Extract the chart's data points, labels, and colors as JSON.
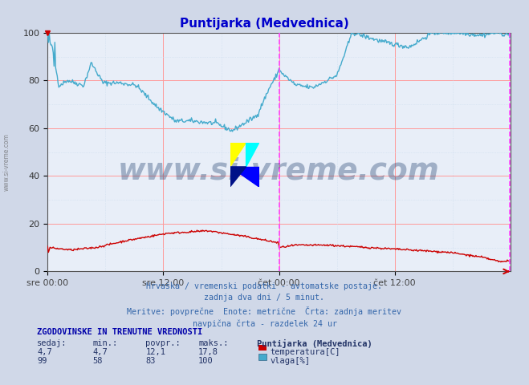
{
  "title": "Puntijarka (Medvednica)",
  "title_color": "#0000cc",
  "bg_color": "#d0d8e8",
  "plot_bg_color": "#e8eef8",
  "grid_color_major": "#ff9999",
  "grid_color_minor": "#ccddee",
  "xlim": [
    0,
    576
  ],
  "ylim": [
    0,
    100
  ],
  "yticks": [
    0,
    20,
    40,
    60,
    80,
    100
  ],
  "xtick_labels": [
    "sre 00:00",
    "sre 12:00",
    "čet 00:00",
    "čet 12:00"
  ],
  "xtick_positions": [
    0,
    144,
    288,
    432
  ],
  "vline_x": 288,
  "vline_color": "#ff44ff",
  "arrow_color": "#cc0000",
  "temp_color": "#cc0000",
  "humidity_color": "#44aacc",
  "watermark": "www.si-vreme.com",
  "watermark_color": "#1a3a6a",
  "watermark_alpha": 0.35,
  "subtitle_lines": [
    "Hrvaška / vremenski podatki - avtomatske postaje.",
    "zadnja dva dni / 5 minut.",
    "Meritve: povprečne  Enote: metrične  Črta: zadnja meritev",
    "navpična črta - razdelek 24 ur"
  ],
  "table_header": "ZGODOVINSKE IN TRENUTNE VREDNOSTI",
  "table_cols": [
    "sedaj:",
    "min.:",
    "povpr.:",
    "maks.:"
  ],
  "table_temp": [
    "4,7",
    "4,7",
    "12,1",
    "17,8"
  ],
  "table_hum": [
    "99",
    "58",
    "83",
    "100"
  ],
  "station_label": "Puntijarka (Medvednica)",
  "temp_label": "temperatura[C]",
  "hum_label": "vlaga[%]"
}
